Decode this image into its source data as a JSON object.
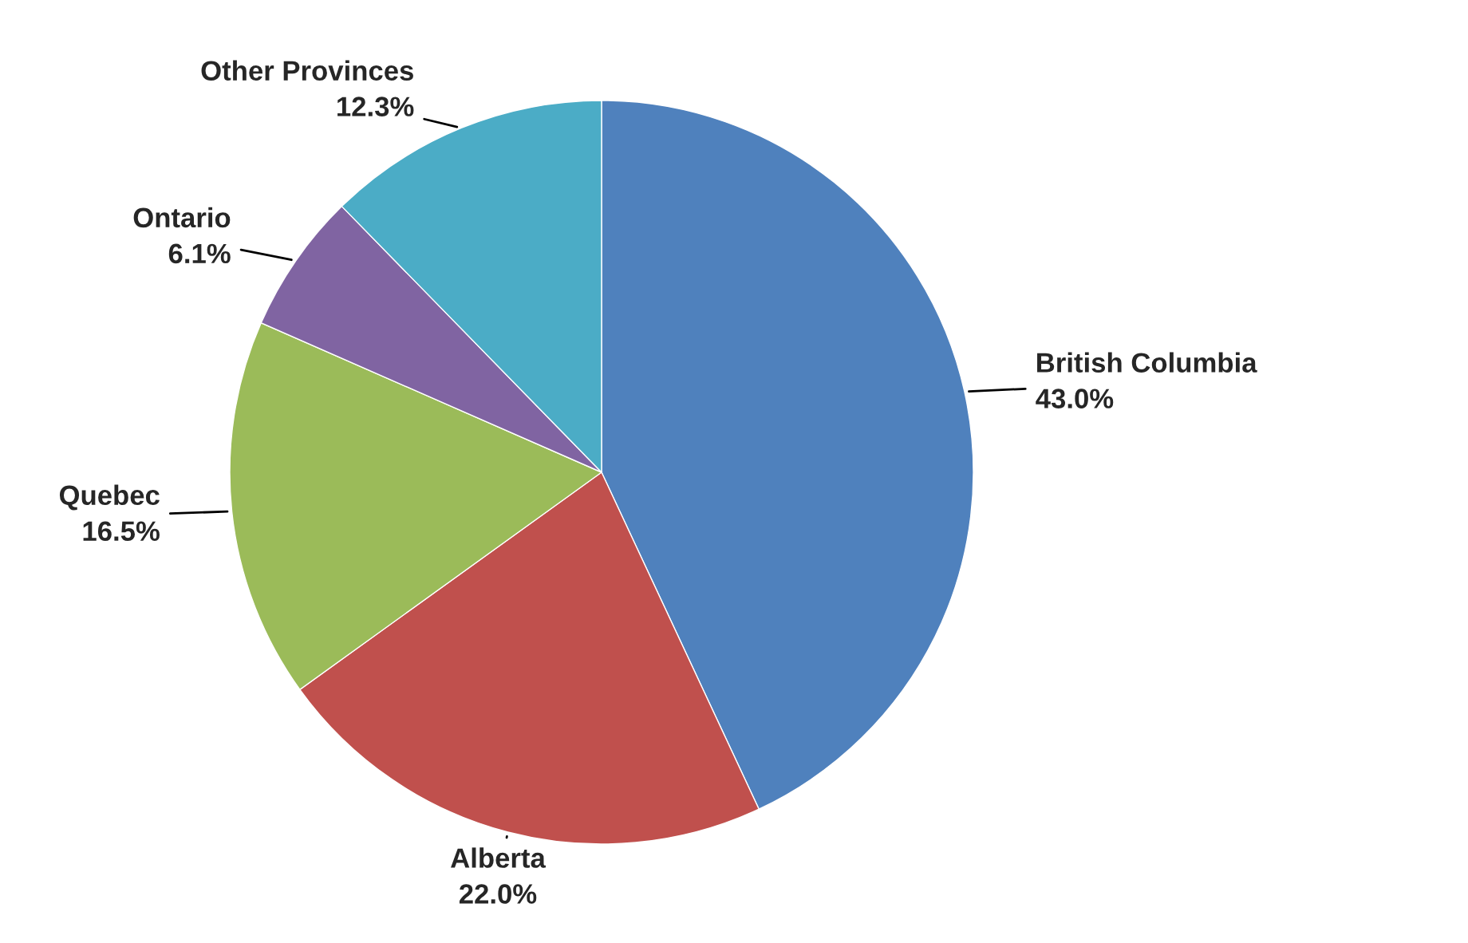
{
  "chart_data": {
    "type": "pie",
    "categories": [
      "British Columbia",
      "Alberta",
      "Quebec",
      "Ontario",
      "Other Provinces"
    ],
    "values": [
      43.0,
      22.0,
      16.5,
      6.1,
      12.3
    ],
    "value_labels": [
      "43.0%",
      "22.0%",
      "16.5%",
      "6.1%",
      "12.3%"
    ],
    "colors": [
      "#4f81bd",
      "#c0504d",
      "#9bbb59",
      "#8064a2",
      "#4bacc6"
    ],
    "legend": false
  }
}
